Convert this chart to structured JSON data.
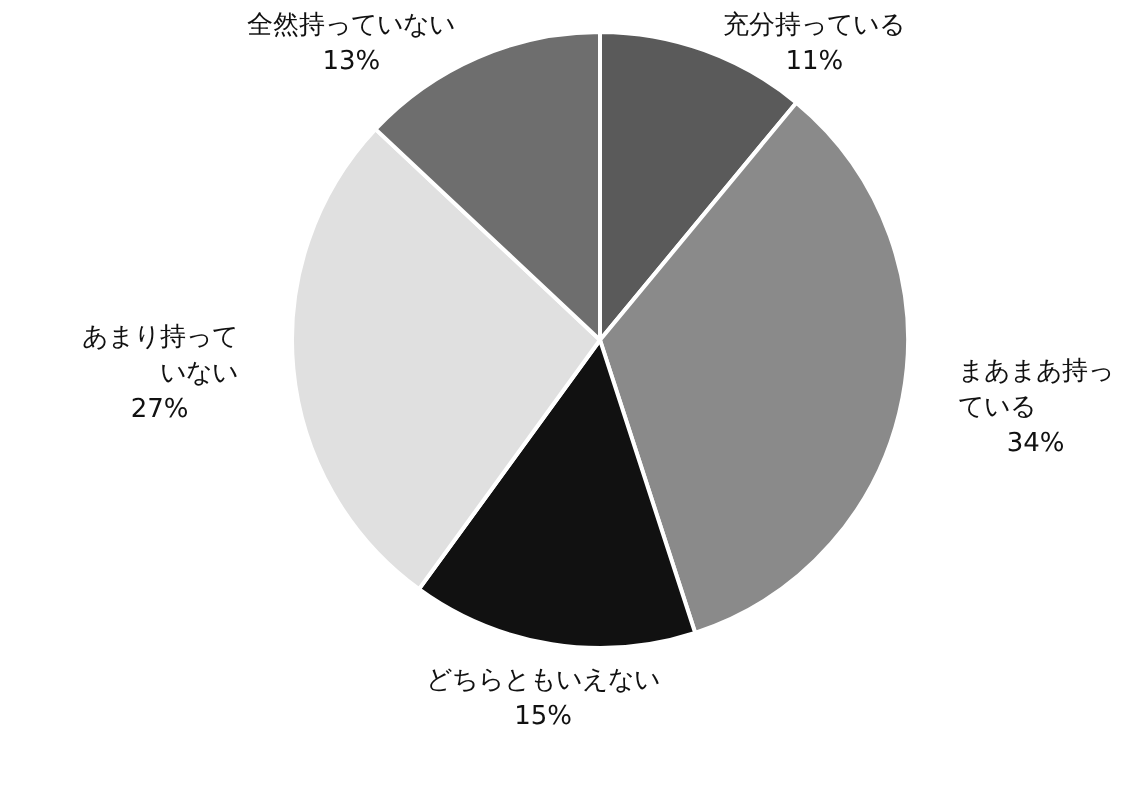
{
  "chart_data": {
    "type": "pie",
    "categories": [
      "充分持っている",
      "まあまあ持っている",
      "どちらともいえない",
      "あまり持っていない",
      "全然持っていない"
    ],
    "values": [
      11,
      34,
      15,
      27,
      13
    ],
    "value_labels": [
      "11%",
      "34%",
      "15%",
      "27%",
      "13%"
    ],
    "colors": [
      "#5a5a5a",
      "#8a8a8a",
      "#111111",
      "#e0e0e0",
      "#6e6e6e"
    ],
    "legend": false
  }
}
